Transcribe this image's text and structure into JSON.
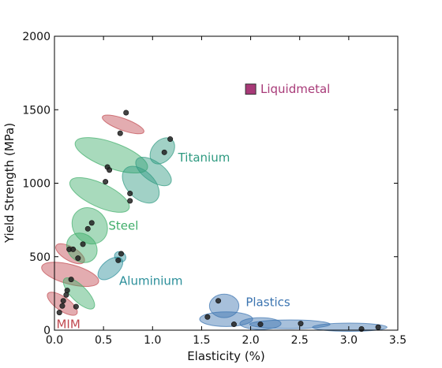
{
  "colors": {
    "MIM": "#c0484f",
    "Steel": "#3fae6a",
    "Titanium": "#2e9a80",
    "Aluminium": "#2b8f9a",
    "Plastics": "#3b74b0",
    "Liquidmetal": "#a83a78",
    "point": "#222222"
  },
  "chart_data": {
    "type": "scatter",
    "title": "",
    "xlabel": "Elasticity (%)",
    "ylabel": "Yield Strength (MPa)",
    "xlim": [
      0.0,
      3.5
    ],
    "ylim": [
      0,
      2000
    ],
    "xticks": [
      "0.0",
      "0.5",
      "1.0",
      "1.5",
      "2.0",
      "2.5",
      "3.0",
      "3.5"
    ],
    "yticks": [
      "0",
      "500",
      "1000",
      "1500",
      "2000"
    ],
    "grid": false,
    "legend": "none",
    "series": [
      {
        "name": "MIM",
        "points": [
          [
            0.05,
            120
          ],
          [
            0.08,
            165
          ],
          [
            0.09,
            200
          ],
          [
            0.12,
            240
          ],
          [
            0.13,
            270
          ],
          [
            0.17,
            345
          ],
          [
            0.15,
            550
          ],
          [
            0.19,
            550
          ],
          [
            0.73,
            1480
          ]
        ],
        "blobs": [
          [
            0.08,
            180,
            0.07,
            120,
            55
          ],
          [
            0.16,
            380,
            0.1,
            200,
            75
          ],
          [
            0.16,
            520,
            0.07,
            110,
            60
          ],
          [
            0.7,
            1400,
            0.06,
            150,
            70
          ]
        ]
      },
      {
        "name": "Steel",
        "points": [
          [
            0.22,
            160
          ],
          [
            0.24,
            490
          ],
          [
            0.29,
            585
          ],
          [
            0.34,
            690
          ],
          [
            0.38,
            730
          ],
          [
            0.52,
            1010
          ],
          [
            0.54,
            1110
          ],
          [
            0.56,
            1090
          ],
          [
            0.67,
            1340
          ]
        ],
        "blobs": [
          [
            0.28,
            560,
            0.14,
            110,
            50
          ],
          [
            0.36,
            710,
            0.17,
            130,
            40
          ],
          [
            0.46,
            920,
            0.12,
            220,
            65
          ],
          [
            0.58,
            1190,
            0.13,
            260,
            70
          ],
          [
            0.25,
            250,
            0.08,
            140,
            45
          ]
        ]
      },
      {
        "name": "Titanium",
        "points": [
          [
            0.77,
            930
          ],
          [
            0.77,
            880
          ],
          [
            1.12,
            1210
          ],
          [
            1.18,
            1300
          ]
        ],
        "blobs": [
          [
            0.88,
            990,
            0.14,
            150,
            45
          ],
          [
            1.01,
            1080,
            0.1,
            140,
            55
          ],
          [
            1.1,
            1220,
            0.15,
            70,
            50
          ]
        ]
      },
      {
        "name": "Aluminium",
        "points": [
          [
            0.65,
            475
          ],
          [
            0.68,
            520
          ]
        ],
        "blobs": [
          [
            0.57,
            420,
            0.15,
            55,
            40
          ],
          [
            0.67,
            500,
            0.05,
            40,
            60
          ]
        ]
      },
      {
        "name": "Plastics",
        "points": [
          [
            1.56,
            90
          ],
          [
            1.67,
            200
          ],
          [
            1.83,
            40
          ],
          [
            2.1,
            40
          ],
          [
            2.51,
            45
          ],
          [
            3.13,
            8
          ],
          [
            3.3,
            20
          ]
        ],
        "blobs": [
          [
            1.73,
            165,
            0.15,
            80,
            0
          ],
          [
            1.75,
            75,
            0.27,
            50,
            0
          ],
          [
            2.1,
            45,
            0.21,
            40,
            0
          ],
          [
            2.4,
            40,
            0.41,
            30,
            0
          ],
          [
            3.01,
            20,
            0.38,
            28,
            0
          ]
        ]
      },
      {
        "name": "Liquidmetal",
        "points": [
          [
            2.0,
            1640
          ]
        ],
        "marker": "square"
      }
    ],
    "annotations": [
      {
        "text": "MIM",
        "x": 0.02,
        "y": 40,
        "series": "MIM"
      },
      {
        "text": "Steel",
        "x": 0.55,
        "y": 710,
        "series": "Steel"
      },
      {
        "text": "Titanium",
        "x": 1.26,
        "y": 1175,
        "series": "Titanium"
      },
      {
        "text": "Aluminium",
        "x": 0.66,
        "y": 335,
        "series": "Aluminium"
      },
      {
        "text": "Plastics",
        "x": 1.95,
        "y": 190,
        "series": "Plastics"
      },
      {
        "text": "Liquidmetal",
        "x": 2.1,
        "y": 1640,
        "series": "Liquidmetal"
      }
    ]
  }
}
